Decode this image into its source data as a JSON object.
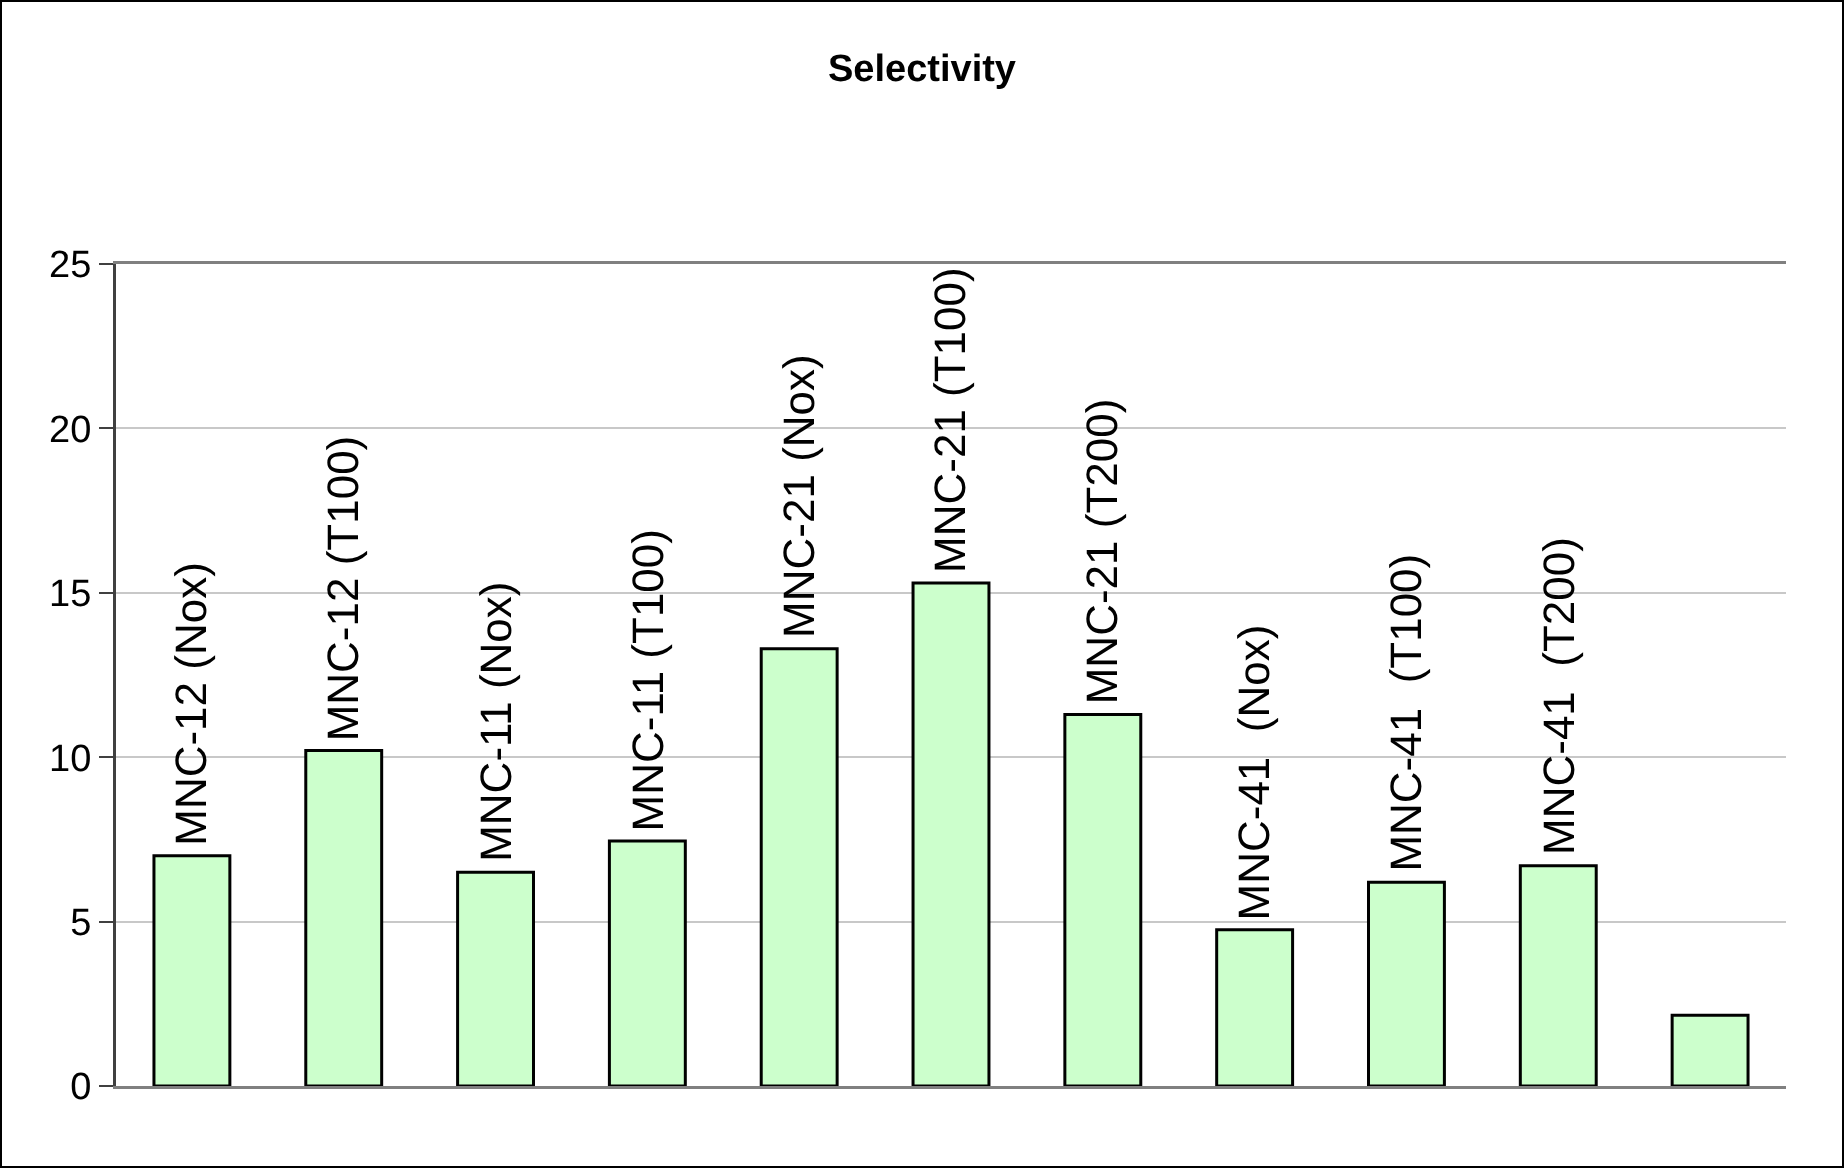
{
  "chart_data": {
    "type": "bar",
    "title": "Selectivity",
    "categories": [
      "MNC-12 (Nox)",
      "MNC-12 (T100)",
      "MNC-11 (Nox)",
      "MNC-11 (T100)",
      "MNC-21 (Nox)",
      "MNC-21 (T100)",
      "MNC-21 (T200)",
      "MNC-41  (Nox)",
      "MNC-41  (T100)",
      "MNC-41  (T200)",
      null
    ],
    "values": [
      7.0,
      10.2,
      6.5,
      7.45,
      13.3,
      15.3,
      11.3,
      4.75,
      6.2,
      6.7,
      2.15
    ],
    "color": "#ccffcc",
    "ylim": [
      0,
      25
    ],
    "yticks": [
      0,
      5,
      10,
      15,
      20,
      25
    ],
    "grid": "y"
  }
}
